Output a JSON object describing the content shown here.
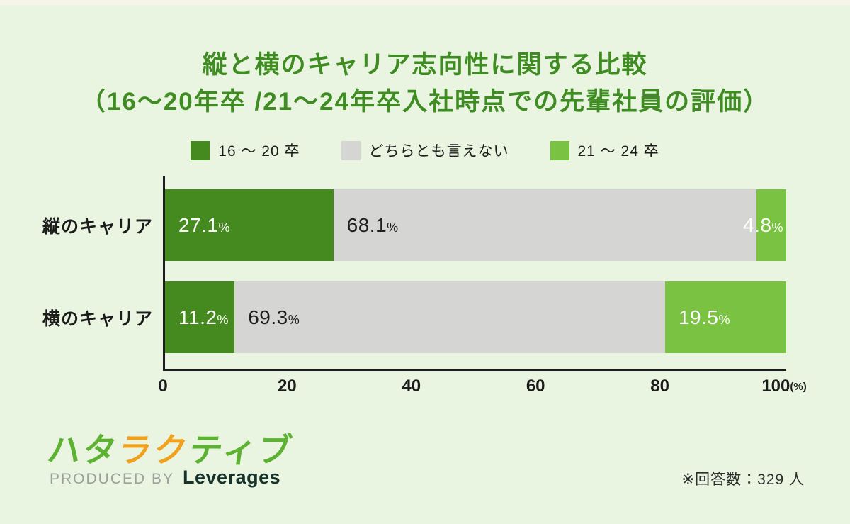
{
  "title": {
    "line1": "縦と横のキャリア志向性に関する比較",
    "line2": "（16～20年卒 /21～24年卒入社時点での先輩社員の評価）",
    "color": "#3e8c22"
  },
  "legend": {
    "items": [
      {
        "label": "16 ～ 20 卒",
        "color": "#458a1e"
      },
      {
        "label": "どちらとも言えない",
        "color": "#d5d5d4"
      },
      {
        "label": "21 ～ 24 卒",
        "color": "#7ac342"
      }
    ]
  },
  "chart_data": {
    "type": "bar",
    "orientation": "horizontal",
    "stacked": true,
    "title": "縦と横のキャリア志向性に関する比較（16～20年卒 /21～24年卒入社時点での先輩社員の評価）",
    "categories": [
      "縦のキャリア",
      "横のキャリア"
    ],
    "series": [
      {
        "name": "16～20卒",
        "color": "#458a1e",
        "text_color": "#ffffff",
        "values": [
          27.1,
          11.2
        ]
      },
      {
        "name": "どちらとも言えない",
        "color": "#d5d5d4",
        "text_color": "#1f1f1f",
        "values": [
          68.1,
          69.3
        ]
      },
      {
        "name": "21～24卒",
        "color": "#7ac342",
        "text_color": "#ffffff",
        "values": [
          4.8,
          19.5
        ]
      }
    ],
    "value_suffix": "%",
    "x_ticks": [
      "0",
      "20",
      "40",
      "60",
      "80",
      "100"
    ],
    "x_unit": "(%)",
    "xlim": [
      0,
      100
    ],
    "grid": false,
    "legend_position": "top"
  },
  "footer": {
    "logo_chars": [
      {
        "ch": "ハ",
        "color": "#5eb231"
      },
      {
        "ch": "タ",
        "color": "#5eb231"
      },
      {
        "ch": "ラ",
        "color": "#f0a11e"
      },
      {
        "ch": "ク",
        "color": "#f0a11e"
      },
      {
        "ch": "テ",
        "color": "#5eb231"
      },
      {
        "ch": "ィ",
        "color": "#5eb231"
      },
      {
        "ch": "ブ",
        "color": "#5eb231"
      }
    ],
    "produced_by": "PRODUCED BY",
    "brand": "Leverages",
    "note": "※回答数：329 人"
  }
}
